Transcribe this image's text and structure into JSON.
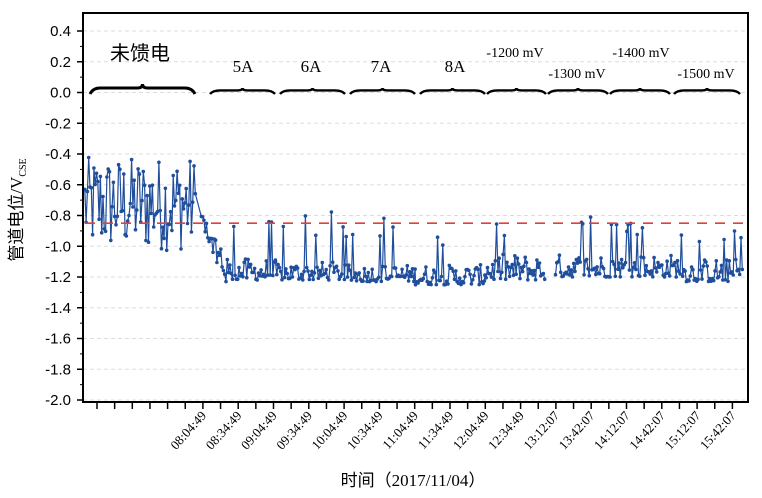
{
  "chart_data": {
    "type": "line",
    "title": "",
    "xlabel": "时间（2017/11/04）",
    "ylabel_main": "管道电位/V",
    "ylabel_sub": "CSE",
    "ylim": [
      -2.0,
      0.5
    ],
    "yticks": [
      "0.4",
      "0.2",
      "0.0",
      "-0.2",
      "-0.4",
      "-0.6",
      "-0.8",
      "-1.0",
      "-1.2",
      "-1.4",
      "-1.6",
      "-1.8",
      "-2.0"
    ],
    "xticks": [
      "08:04:49",
      "08:34:49",
      "09:04:49",
      "09:34:49",
      "10:04:49",
      "10:34:49",
      "11:04:49",
      "11:34:49",
      "12:04:49",
      "12:34:49",
      "13:12:07",
      "13:42:07",
      "14:12:07",
      "14:42:07",
      "15:12:07",
      "15:42:07"
    ],
    "grid": true,
    "reference_line": {
      "value": -0.85,
      "style": "dashed",
      "color": "#e0413a"
    },
    "series_color": "#1f4e9c",
    "segments": [
      {
        "label": "未馈电",
        "start": "06:21",
        "end": "07:56",
        "low": -1.03,
        "high": -0.42,
        "spike": -0.42
      },
      {
        "label": "5A",
        "start": "08:00",
        "end": "09:03",
        "low": -1.22,
        "high": -1.08,
        "spike": -0.78
      },
      {
        "label": "6A",
        "start": "09:03",
        "end": "10:02",
        "low": -1.22,
        "high": -1.1,
        "spike": -0.76
      },
      {
        "label": "7A",
        "start": "10:02",
        "end": "11:02",
        "low": -1.23,
        "high": -1.12,
        "spike": -0.78
      },
      {
        "label": "8A",
        "start": "11:02",
        "end": "12:01",
        "low": -1.25,
        "high": -1.12,
        "spike": -0.9
      },
      {
        "label": "-1200 mV",
        "start": "12:01",
        "end": "12:52",
        "low": -1.22,
        "high": -1.05,
        "spike": -0.82
      },
      {
        "label": "-1300 mV",
        "start": "13:01",
        "end": "13:55",
        "low": -1.2,
        "high": -1.05,
        "spike": -0.78
      },
      {
        "label": "-1400 mV",
        "start": "13:55",
        "end": "14:50",
        "low": -1.2,
        "high": -1.05,
        "spike": -0.85
      },
      {
        "label": "-1500 mV",
        "start": "14:50",
        "end": "15:40",
        "low": -1.23,
        "high": -1.08,
        "spike": -0.88
      }
    ]
  }
}
